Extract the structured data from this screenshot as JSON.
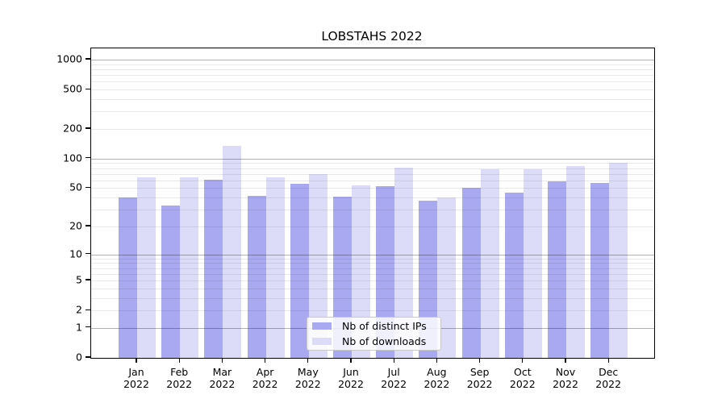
{
  "title": "LOBSTAHS 2022",
  "chart_data": {
    "type": "bar",
    "title": "LOBSTAHS 2022",
    "scale": "log10(1+x)",
    "categories": [
      "Jan 2022",
      "Feb 2022",
      "Mar 2022",
      "Apr 2022",
      "May 2022",
      "Jun 2022",
      "Jul 2022",
      "Aug 2022",
      "Sep 2022",
      "Oct 2022",
      "Nov 2022",
      "Dec 2022"
    ],
    "x_tick_month": [
      "Jan",
      "Feb",
      "Mar",
      "Apr",
      "May",
      "Jun",
      "Jul",
      "Aug",
      "Sep",
      "Oct",
      "Nov",
      "Dec"
    ],
    "x_tick_year": "2022",
    "series": [
      {
        "name": "Nb of distinct IPs",
        "color": "#a9a9f2",
        "values": [
          40,
          33,
          61,
          42,
          56,
          41,
          52,
          37,
          50,
          45,
          59,
          57
        ]
      },
      {
        "name": "Nb of downloads",
        "color": "#dcdcf8",
        "values": [
          64,
          64,
          134,
          65,
          70,
          53,
          81,
          40,
          78,
          78,
          84,
          91
        ]
      }
    ],
    "y_ticks": [
      0,
      1,
      2,
      5,
      10,
      20,
      50,
      100,
      200,
      500,
      1000
    ],
    "ylim": [
      0,
      1300
    ],
    "xlabel": "",
    "ylabel": "",
    "grid": true,
    "legend_position": "inside-bottom-center"
  },
  "legend": {
    "items": [
      {
        "label": "Nb of distinct IPs"
      },
      {
        "label": "Nb of downloads"
      }
    ]
  }
}
